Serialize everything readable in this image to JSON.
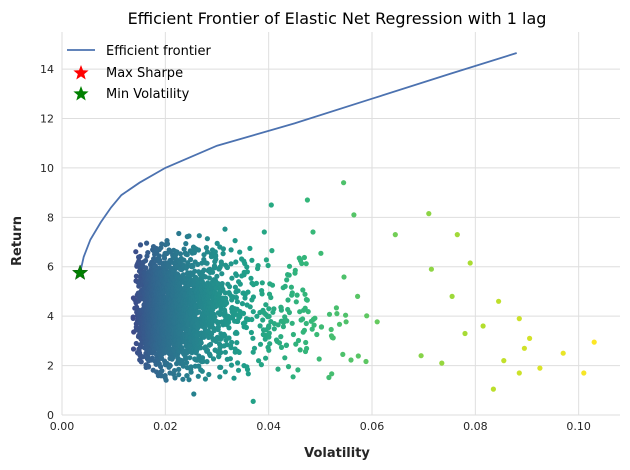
{
  "chart_data": {
    "type": "scatter",
    "title": "Efficient Frontier of Elastic Net Regression with 1 lag",
    "xlabel": "Volatility",
    "ylabel": "Return",
    "xlim": [
      0.0,
      0.108
    ],
    "ylim": [
      0,
      15.5
    ],
    "x_ticks": [
      "0.00",
      "0.02",
      "0.04",
      "0.06",
      "0.08",
      "0.10"
    ],
    "y_ticks": [
      "0",
      "2",
      "4",
      "6",
      "8",
      "10",
      "12",
      "14"
    ],
    "grid": true,
    "legend_position": "top-left",
    "colormap": "viridis",
    "series": [
      {
        "name": "Efficient frontier",
        "kind": "line",
        "color": "#4c72b0",
        "x": [
          0.0035,
          0.0042,
          0.0055,
          0.0075,
          0.0095,
          0.0115,
          0.015,
          0.02,
          0.03,
          0.045,
          0.06,
          0.075,
          0.088
        ],
        "y": [
          5.75,
          6.4,
          7.1,
          7.8,
          8.4,
          8.9,
          9.4,
          10.0,
          10.9,
          11.8,
          12.8,
          13.8,
          14.65
        ]
      },
      {
        "name": "Max Sharpe",
        "kind": "marker",
        "marker": "star",
        "color": "#ff0000",
        "x": [],
        "y": []
      },
      {
        "name": "Min Volatility",
        "kind": "marker",
        "marker": "star",
        "color": "#008000",
        "x": [
          0.0035
        ],
        "y": [
          5.75
        ]
      },
      {
        "name": "Simulated portfolios",
        "kind": "scatter-cloud",
        "colored_by": "volatility",
        "x_range": [
          0.0105,
          0.103
        ],
        "y_range": [
          0.5,
          9.4
        ],
        "outliers": [
          {
            "x": 0.0545,
            "y": 9.4
          },
          {
            "x": 0.071,
            "y": 8.15
          },
          {
            "x": 0.0565,
            "y": 8.1
          },
          {
            "x": 0.0475,
            "y": 8.7
          },
          {
            "x": 0.0405,
            "y": 8.5
          },
          {
            "x": 0.0645,
            "y": 7.3
          },
          {
            "x": 0.0765,
            "y": 7.3
          },
          {
            "x": 0.079,
            "y": 6.15
          },
          {
            "x": 0.0715,
            "y": 5.9
          },
          {
            "x": 0.0845,
            "y": 4.6
          },
          {
            "x": 0.0885,
            "y": 3.9
          },
          {
            "x": 0.0905,
            "y": 3.1
          },
          {
            "x": 0.0895,
            "y": 2.7
          },
          {
            "x": 0.0925,
            "y": 1.9
          },
          {
            "x": 0.097,
            "y": 2.5
          },
          {
            "x": 0.101,
            "y": 1.7
          },
          {
            "x": 0.103,
            "y": 2.95
          },
          {
            "x": 0.0885,
            "y": 1.7
          },
          {
            "x": 0.0835,
            "y": 1.05
          },
          {
            "x": 0.037,
            "y": 0.55
          },
          {
            "x": 0.0255,
            "y": 0.85
          },
          {
            "x": 0.0815,
            "y": 3.6
          },
          {
            "x": 0.078,
            "y": 3.3
          },
          {
            "x": 0.0735,
            "y": 2.1
          },
          {
            "x": 0.0695,
            "y": 2.4
          },
          {
            "x": 0.0755,
            "y": 4.8
          },
          {
            "x": 0.0855,
            "y": 2.2
          }
        ]
      }
    ]
  }
}
